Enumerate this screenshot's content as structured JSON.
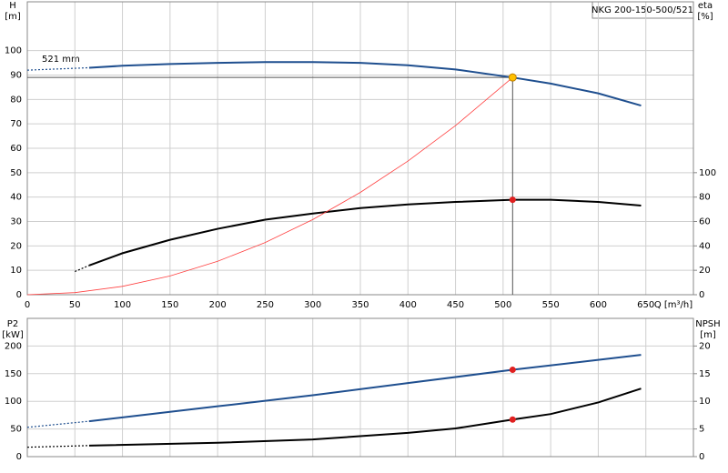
{
  "chart_data": [
    {
      "type": "line",
      "x_label": "Q [m³/h]",
      "y_title": "H",
      "y_unit": "[m]",
      "y2_title": "eta",
      "y2_unit": "[%]",
      "annotation": "521 mm",
      "product_label": "NKG 200-150-500/521",
      "xlim": [
        0,
        700
      ],
      "xticks": [
        0,
        50,
        100,
        150,
        200,
        250,
        300,
        350,
        400,
        450,
        500,
        550,
        600,
        650
      ],
      "ylim": [
        0,
        120
      ],
      "yticks": [
        0,
        10,
        20,
        30,
        40,
        50,
        60,
        70,
        80,
        90,
        100
      ],
      "y2lim": [
        0,
        240
      ],
      "y2ticks": [
        0,
        20,
        40,
        60,
        80,
        100
      ],
      "grid": true,
      "duty_point": {
        "x": 510,
        "y": 89,
        "color": "#ffc000"
      },
      "series": [
        {
          "color": "#1f4f8f",
          "style": "dotted",
          "x": [
            0,
            65
          ],
          "values": [
            92,
            93
          ]
        },
        {
          "color": "#1f4f8f",
          "style": "solid",
          "x": [
            65,
            100,
            150,
            200,
            250,
            300,
            350,
            400,
            450,
            510,
            550,
            600,
            645
          ],
          "values": [
            93,
            93.8,
            94.5,
            95,
            95.3,
            95.3,
            95,
            94,
            92.3,
            89,
            86.5,
            82.5,
            77.5
          ]
        },
        {
          "color": "#000000",
          "style": "dotted",
          "axis": "y2",
          "x": [
            50,
            65
          ],
          "values": [
            19,
            24
          ]
        },
        {
          "color": "#000000",
          "style": "solid",
          "axis": "y2",
          "x": [
            65,
            100,
            150,
            200,
            250,
            300,
            350,
            400,
            450,
            510,
            550,
            600,
            645
          ],
          "values": [
            24,
            34,
            45,
            54,
            61.5,
            66.5,
            71,
            74,
            76,
            77.8,
            77.8,
            76,
            73
          ]
        },
        {
          "color": "#ff4040",
          "style": "thin",
          "x": [
            0,
            50,
            100,
            150,
            200,
            250,
            300,
            350,
            400,
            450,
            510
          ],
          "values": [
            0,
            0.86,
            3.42,
            7.7,
            13.69,
            21.39,
            30.8,
            41.92,
            54.75,
            69.29,
            89
          ]
        },
        {
          "color": "#e02020",
          "style": "marker",
          "axis": "y2",
          "x": [
            510
          ],
          "values": [
            77.8
          ]
        }
      ]
    },
    {
      "type": "line",
      "y_title": "P2",
      "y_unit": "[kW]",
      "y2_title": "NPSH",
      "y2_unit": "[m]",
      "xlim": [
        0,
        700
      ],
      "xticks": [
        0,
        50,
        100,
        150,
        200,
        250,
        300,
        350,
        400,
        450,
        500,
        550,
        600,
        650
      ],
      "ylim": [
        0,
        250
      ],
      "yticks": [
        0,
        50,
        100,
        150,
        200
      ],
      "y2lim": [
        0,
        25
      ],
      "y2ticks": [
        0,
        5,
        10,
        15,
        20
      ],
      "grid": true,
      "series": [
        {
          "color": "#1f4f8f",
          "style": "dotted",
          "x": [
            0,
            65
          ],
          "values": [
            53,
            64
          ]
        },
        {
          "color": "#1f4f8f",
          "style": "solid",
          "x": [
            65,
            100,
            200,
            300,
            400,
            510,
            600,
            645
          ],
          "values": [
            64,
            71,
            91,
            111,
            133,
            157,
            175,
            184
          ]
        },
        {
          "color": "#e02020",
          "style": "marker",
          "x": [
            510
          ],
          "values": [
            157
          ]
        },
        {
          "color": "#000000",
          "style": "dotted",
          "axis": "y2",
          "x": [
            0,
            65
          ],
          "values": [
            1.7,
            2
          ]
        },
        {
          "color": "#000000",
          "style": "solid",
          "axis": "y2",
          "x": [
            65,
            200,
            300,
            400,
            450,
            510,
            550,
            600,
            645
          ],
          "values": [
            2,
            2.5,
            3.1,
            4.3,
            5.1,
            6.7,
            7.7,
            9.8,
            12.3
          ]
        },
        {
          "color": "#e02020",
          "style": "marker",
          "axis": "y2",
          "x": [
            510
          ],
          "values": [
            6.7
          ]
        }
      ]
    }
  ]
}
